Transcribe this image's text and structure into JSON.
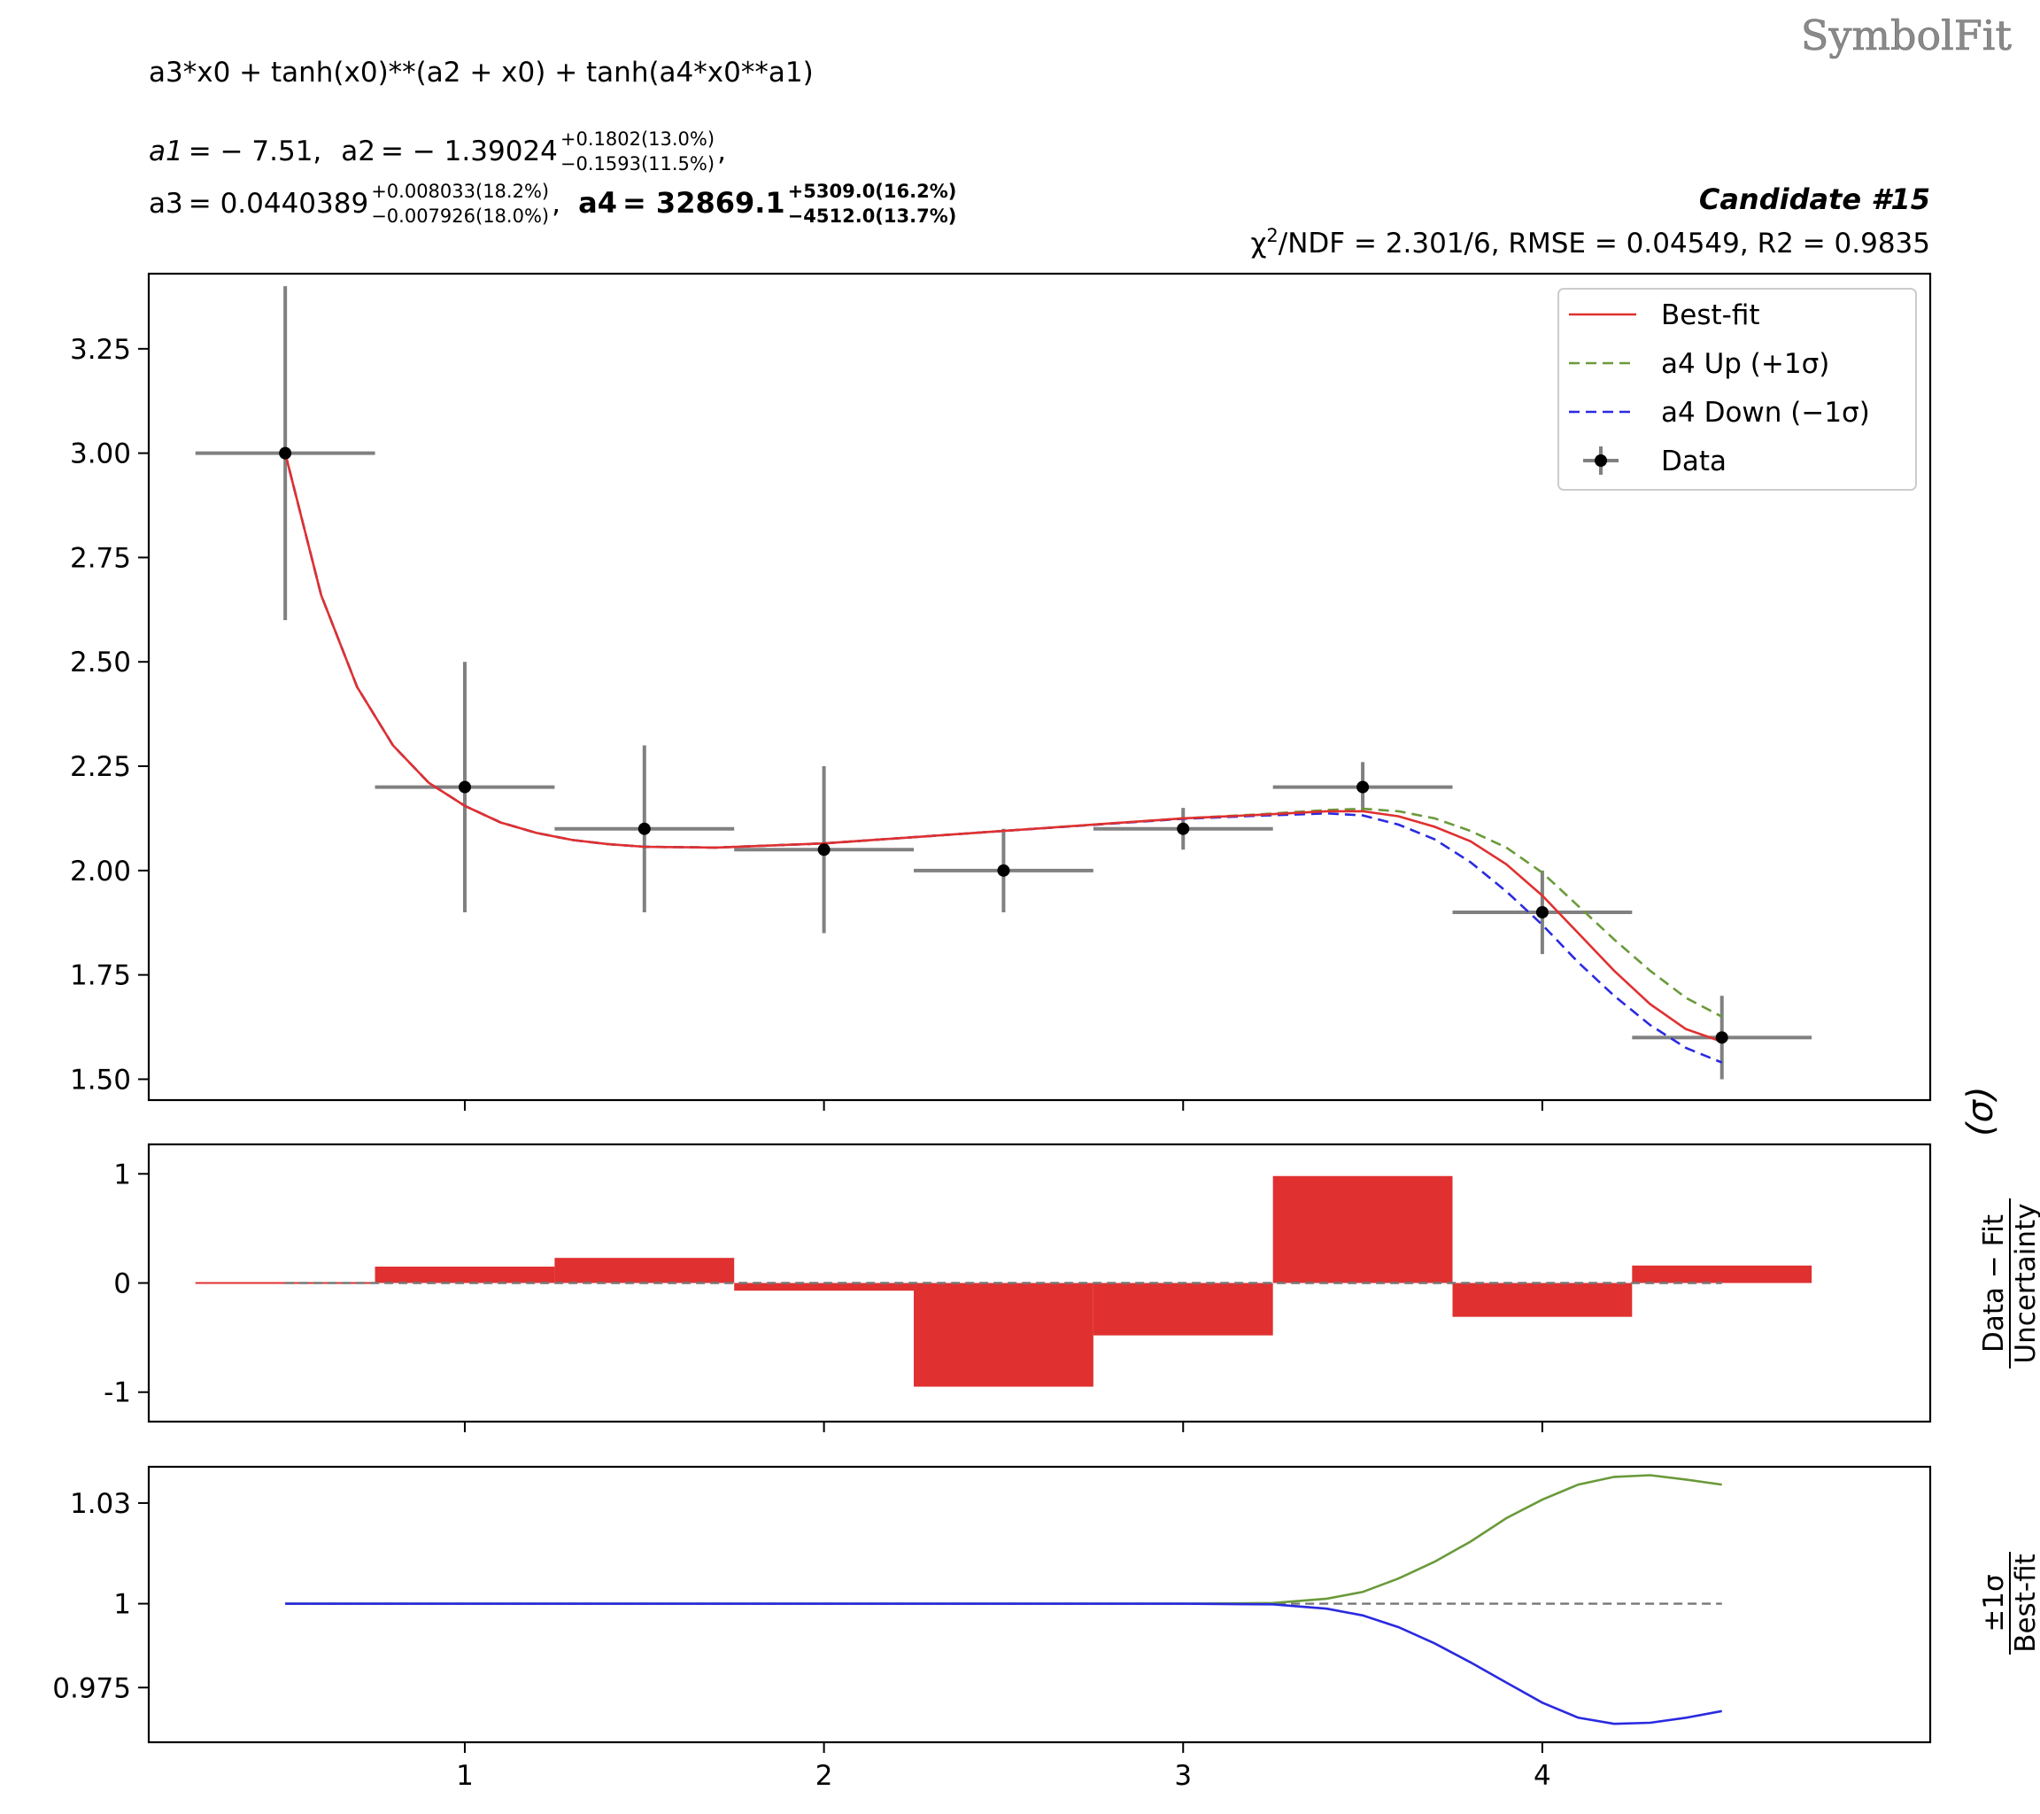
{
  "watermark": "SymbolFit",
  "header": {
    "formula": "a3*x0 + tanh(x0)**(a2 + x0) + tanh(a4*x0**a1)",
    "params": {
      "a1": {
        "name": "a1",
        "value": "= − 7.51,",
        "sup": "",
        "sub": ""
      },
      "a2": {
        "name": "a2",
        "value": "= − 1.39024",
        "sup": "+0.1802(13.0%)",
        "sub": "−0.1593(11.5%)"
      },
      "a3": {
        "name": "a3",
        "value": "= 0.0440389",
        "sup": "+0.008033(18.2%)",
        "sub": "−0.007926(18.0%)"
      },
      "a4": {
        "name": "a4",
        "value": "= 32869.1",
        "sup": "+5309.0(16.2%)",
        "sub": "−4512.0(13.7%)"
      }
    },
    "candidate": "Candidate #15",
    "stats": {
      "chi": "χ",
      "chi_exp": "2",
      "rest": "/NDF = 2.301/6, RMSE = 0.04549, R2 = 0.9835"
    }
  },
  "chart_data": [
    {
      "type": "line",
      "panel": "main",
      "xlim": [
        0.12,
        5.08
      ],
      "ylim": [
        1.45,
        3.43
      ],
      "yticks": [
        1.5,
        1.75,
        2.0,
        2.25,
        2.5,
        2.75,
        3.0,
        3.25
      ],
      "yticklabels": [
        "1.50",
        "1.75",
        "2.00",
        "2.25",
        "2.50",
        "2.75",
        "3.00",
        "3.25"
      ],
      "xticks": [
        1,
        2,
        3,
        4
      ],
      "data": {
        "name": "Data",
        "x": [
          0.5,
          1.0,
          1.5,
          2.0,
          2.5,
          3.0,
          3.5,
          4.0,
          4.5
        ],
        "y": [
          3.0,
          2.2,
          2.1,
          2.05,
          2.0,
          2.1,
          2.2,
          1.9,
          1.6
        ],
        "xerr": 0.25,
        "yerr": [
          0.4,
          0.3,
          0.2,
          0.2,
          0.1,
          0.05,
          0.06,
          0.1,
          0.1
        ],
        "color": "#000000",
        "errcolor": "#808080"
      },
      "series": [
        {
          "name": "Best-fit",
          "color": "#e03030",
          "dashed": false,
          "x": [
            0.5,
            0.6,
            0.7,
            0.8,
            0.9,
            1.0,
            1.1,
            1.2,
            1.3,
            1.4,
            1.5,
            1.7,
            2.0,
            2.5,
            3.0,
            3.2,
            3.4,
            3.5,
            3.6,
            3.7,
            3.8,
            3.9,
            4.0,
            4.1,
            4.2,
            4.3,
            4.4,
            4.5
          ],
          "y": [
            3.0,
            2.66,
            2.44,
            2.3,
            2.21,
            2.155,
            2.115,
            2.09,
            2.073,
            2.063,
            2.057,
            2.055,
            2.065,
            2.095,
            2.125,
            2.133,
            2.142,
            2.142,
            2.13,
            2.105,
            2.07,
            2.015,
            1.94,
            1.85,
            1.76,
            1.68,
            1.62,
            1.59
          ]
        },
        {
          "name": "a4 Up (+1σ)",
          "color": "#6a9a3a",
          "dashed": true,
          "x": [
            0.5,
            0.6,
            0.7,
            0.8,
            0.9,
            1.0,
            1.1,
            1.2,
            1.3,
            1.4,
            1.5,
            1.7,
            2.0,
            2.5,
            3.0,
            3.2,
            3.4,
            3.5,
            3.6,
            3.7,
            3.8,
            3.9,
            4.0,
            4.1,
            4.2,
            4.3,
            4.4,
            4.5
          ],
          "y": [
            3.0,
            2.66,
            2.44,
            2.3,
            2.21,
            2.155,
            2.115,
            2.09,
            2.073,
            2.063,
            2.057,
            2.055,
            2.065,
            2.095,
            2.125,
            2.134,
            2.145,
            2.148,
            2.142,
            2.125,
            2.095,
            2.055,
            1.995,
            1.915,
            1.835,
            1.76,
            1.695,
            1.65
          ]
        },
        {
          "name": "a4 Down (−1σ)",
          "color": "#2a2ae0",
          "dashed": true,
          "x": [
            0.5,
            0.6,
            0.7,
            0.8,
            0.9,
            1.0,
            1.1,
            1.2,
            1.3,
            1.4,
            1.5,
            1.7,
            2.0,
            2.5,
            3.0,
            3.2,
            3.4,
            3.5,
            3.6,
            3.7,
            3.8,
            3.9,
            4.0,
            4.1,
            4.2,
            4.3,
            4.4,
            4.5
          ],
          "y": [
            3.0,
            2.66,
            2.44,
            2.3,
            2.21,
            2.155,
            2.115,
            2.09,
            2.073,
            2.063,
            2.057,
            2.055,
            2.065,
            2.095,
            2.124,
            2.131,
            2.137,
            2.132,
            2.11,
            2.075,
            2.02,
            1.95,
            1.87,
            1.78,
            1.7,
            1.63,
            1.575,
            1.54
          ]
        }
      ],
      "legend": "top-right"
    },
    {
      "type": "bar",
      "panel": "residual",
      "xlim": [
        0.12,
        5.08
      ],
      "ylim": [
        -1.27,
        1.27
      ],
      "yticks": [
        1,
        0,
        -1
      ],
      "yticklabels": [
        "1",
        "0",
        "-1"
      ],
      "xticks": [
        1,
        2,
        3,
        4
      ],
      "ylabel_num": "Data − Fit",
      "ylabel_den": "Uncertainty",
      "ylabel_unit": "(σ)",
      "bins": [
        {
          "x0": 0.25,
          "x1": 0.75,
          "value": 0.0
        },
        {
          "x0": 0.75,
          "x1": 1.25,
          "value": 0.15
        },
        {
          "x0": 1.25,
          "x1": 1.75,
          "value": 0.23
        },
        {
          "x0": 1.75,
          "x1": 2.25,
          "value": -0.07
        },
        {
          "x0": 2.25,
          "x1": 2.75,
          "value": -0.95
        },
        {
          "x0": 2.75,
          "x1": 3.25,
          "value": -0.48
        },
        {
          "x0": 3.25,
          "x1": 3.75,
          "value": 0.98
        },
        {
          "x0": 3.75,
          "x1": 4.25,
          "value": -0.31
        },
        {
          "x0": 4.25,
          "x1": 4.75,
          "value": 0.16
        }
      ],
      "color": "#e03030",
      "reference": 0
    },
    {
      "type": "line",
      "panel": "ratio",
      "xlim": [
        0.12,
        5.08
      ],
      "ylim": [
        0.9587,
        1.0408
      ],
      "yticks": [
        1.03,
        1.0,
        0.975
      ],
      "yticklabels": [
        "1.03",
        "1",
        "0.975"
      ],
      "xticks": [
        1,
        2,
        3,
        4
      ],
      "xticklabels": [
        "1",
        "2",
        "3",
        "4"
      ],
      "ylabel_num": "±1σ",
      "ylabel_den": "Best-fit",
      "reference": 1.0,
      "series": [
        {
          "name": "a4 Up (+1σ)",
          "color": "#6a9a3a",
          "x": [
            0.5,
            3.0,
            3.25,
            3.4,
            3.5,
            3.6,
            3.7,
            3.8,
            3.9,
            4.0,
            4.1,
            4.2,
            4.3,
            4.4,
            4.5
          ],
          "y": [
            1.0,
            1.0,
            1.0002,
            1.0015,
            1.0035,
            1.0075,
            1.0125,
            1.0185,
            1.0255,
            1.031,
            1.0355,
            1.0378,
            1.0383,
            1.037,
            1.0355
          ]
        },
        {
          "name": "a4 Down (−1σ)",
          "color": "#2a2ae0",
          "x": [
            0.5,
            3.0,
            3.25,
            3.4,
            3.5,
            3.6,
            3.7,
            3.8,
            3.9,
            4.0,
            4.1,
            4.2,
            4.3,
            4.4,
            4.5
          ],
          "y": [
            1.0,
            1.0,
            0.9998,
            0.9985,
            0.9965,
            0.993,
            0.9882,
            0.9825,
            0.9765,
            0.9705,
            0.966,
            0.9642,
            0.9645,
            0.966,
            0.968
          ]
        }
      ]
    }
  ]
}
